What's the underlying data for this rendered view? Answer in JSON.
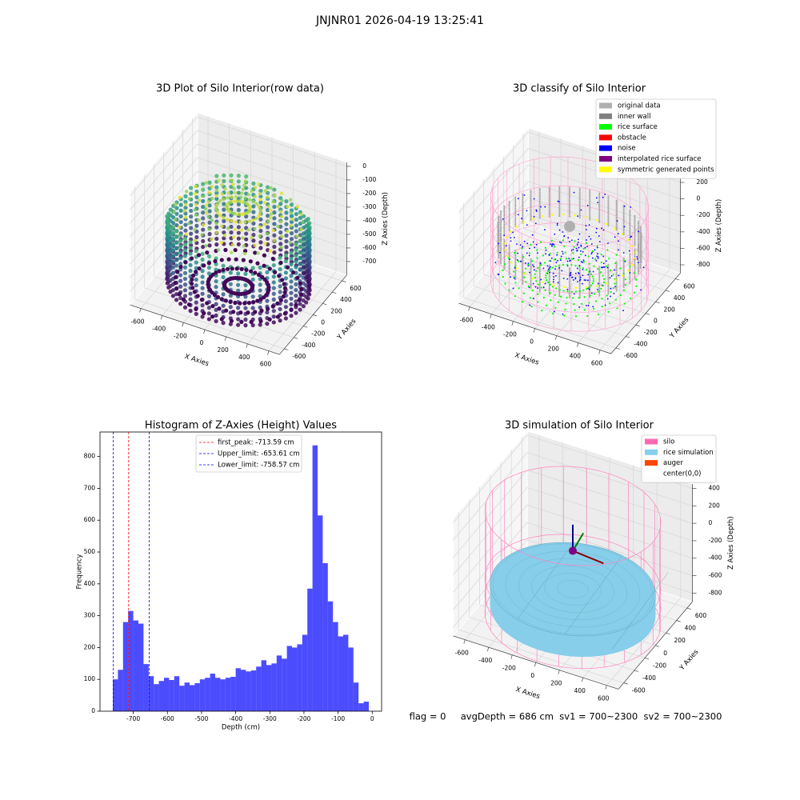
{
  "suptitle": "JNJNR01 2026-04-19 13:25:41",
  "footer": "flag = 0     avgDepth = 686 cm  sv1 = 700~2300  sv2 = 700~2300",
  "chart_data": [
    {
      "type": "scatter3d",
      "title": "3D Plot of Silo Interior(row data)",
      "xlabel": "X Axies",
      "ylabel": "Y Axies",
      "zlabel": "Z Axies (Depth)",
      "xlim": [
        -700,
        700
      ],
      "ylim": [
        -700,
        700
      ],
      "zlim": [
        -800,
        30
      ],
      "xticks": [
        -600,
        -400,
        -200,
        0,
        200,
        400,
        600
      ],
      "yticks": [
        -600,
        -400,
        -200,
        0,
        200,
        400,
        600
      ],
      "zticks": [
        -700,
        -600,
        -500,
        -400,
        -300,
        -200,
        -100,
        0
      ]
    },
    {
      "type": "scatter3d",
      "title": "3D classify of Silo Interior",
      "xlabel": "X Axies",
      "ylabel": "Y Axies",
      "zlabel": "Z Axies (Depth)",
      "xlim": [
        -700,
        700
      ],
      "ylim": [
        -700,
        700
      ],
      "zlim": [
        -900,
        250
      ],
      "xticks": [
        -600,
        -400,
        -200,
        0,
        200,
        400,
        600
      ],
      "yticks": [
        -600,
        -400,
        -200,
        0,
        200,
        400,
        600
      ],
      "zticks": [
        -800,
        -600,
        -400,
        -200,
        0,
        200
      ],
      "legend": [
        {
          "name": "original data",
          "color": "#b0b0b0"
        },
        {
          "name": "inner wall",
          "color": "#808080"
        },
        {
          "name": "rice surface",
          "color": "#00ff00"
        },
        {
          "name": "obstacle",
          "color": "#ff0000"
        },
        {
          "name": "noise",
          "color": "#0000ff"
        },
        {
          "name": "interpolated rice surface",
          "color": "#800080"
        },
        {
          "name": "symmetric generated points",
          "color": "#ffff00"
        }
      ]
    },
    {
      "type": "histogram",
      "title": "Histogram of Z-Axies (Height) Values",
      "xlabel": "Depth (cm)",
      "ylabel": "Frequency",
      "bins": [
        -760,
        -745,
        -730,
        -715,
        -700,
        -685,
        -670,
        -655,
        -640,
        -625,
        -610,
        -595,
        -580,
        -565,
        -550,
        -535,
        -520,
        -505,
        -490,
        -475,
        -460,
        -445,
        -430,
        -415,
        -400,
        -385,
        -370,
        -355,
        -340,
        -325,
        -310,
        -295,
        -280,
        -265,
        -250,
        -235,
        -220,
        -205,
        -190,
        -175,
        -160,
        -145,
        -130,
        -115,
        -100,
        -85,
        -70,
        -55,
        -40,
        -25,
        -10
      ],
      "counts": [
        100,
        130,
        280,
        315,
        285,
        275,
        148,
        110,
        85,
        95,
        105,
        98,
        110,
        80,
        90,
        82,
        88,
        100,
        105,
        118,
        105,
        100,
        105,
        108,
        135,
        130,
        125,
        128,
        140,
        160,
        145,
        150,
        175,
        165,
        205,
        200,
        210,
        240,
        385,
        835,
        615,
        465,
        345,
        280,
        235,
        240,
        200,
        90,
        25,
        30
      ],
      "color": "#0000ff",
      "alpha": 0.7,
      "xlim": [
        -797.5,
        27.5
      ],
      "ylim": [
        0,
        877
      ],
      "xticks": [
        -700,
        -600,
        -500,
        -400,
        -300,
        -200,
        -100,
        0
      ],
      "yticks": [
        0,
        100,
        200,
        300,
        400,
        500,
        600,
        700,
        800
      ],
      "lines": [
        {
          "name": "first_peak: -713.59 cm",
          "value": -713.59,
          "color": "#ff0000"
        },
        {
          "name": "Upper_limit: -653.61 cm",
          "value": -653.61,
          "color": "#0000ff"
        },
        {
          "name": "Lower_limit: -758.57 cm",
          "value": -758.57,
          "color": "#0000ff"
        }
      ],
      "legend": "upper center"
    },
    {
      "type": "scatter3d",
      "title": "3D simulation of Silo Interior",
      "xlabel": "X Axies",
      "ylabel": "Y Axies",
      "zlabel": "Z Axies (Depth)",
      "xlim": [
        -700,
        700
      ],
      "ylim": [
        -700,
        700
      ],
      "zlim": [
        -900,
        450
      ],
      "xticks": [
        -600,
        -400,
        -200,
        0,
        200,
        400,
        600
      ],
      "yticks": [
        -600,
        -400,
        -200,
        0,
        200,
        400,
        600
      ],
      "zticks": [
        -800,
        -600,
        -400,
        -200,
        0,
        200,
        400
      ],
      "legend": [
        {
          "name": "silo",
          "color": "#ff69b4"
        },
        {
          "name": "rice simulation",
          "color": "#87ceeb"
        },
        {
          "name": "auger",
          "color": "#ff4500"
        },
        {
          "name": "center(0,0)",
          "color": "#ffffff"
        }
      ]
    }
  ]
}
